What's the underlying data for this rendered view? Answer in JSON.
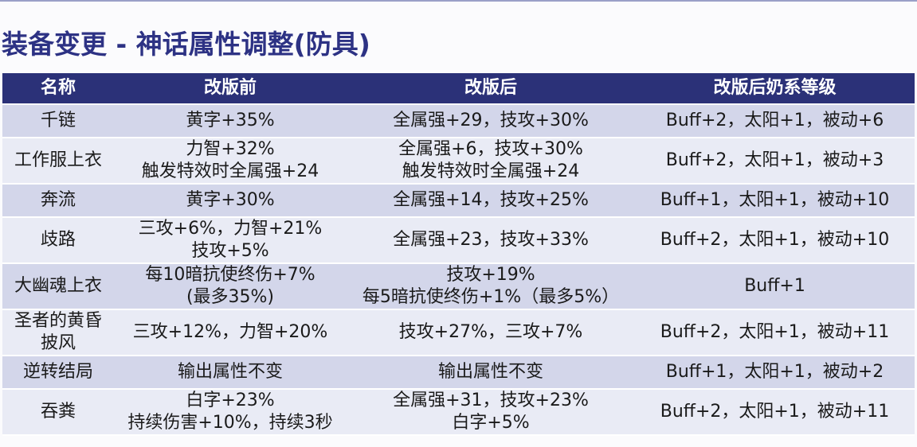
{
  "title": "装备变更 - 神话属性调整(防具)",
  "header": {
    "name": "名称",
    "before": "改版前",
    "after": "改版后",
    "level": "改版后奶系等级"
  },
  "rows": [
    {
      "name": [
        "千链"
      ],
      "before": [
        "黄字+35%"
      ],
      "after": [
        "全属强+29，技攻+30%"
      ],
      "level": [
        "Buff+2，太阳+1，被动+6"
      ]
    },
    {
      "name": [
        "工作服上衣"
      ],
      "before": [
        "力智+32%",
        "触发特效时全属强+24"
      ],
      "after": [
        "全属强+6，技攻+30%",
        "触发特效时全属强+24"
      ],
      "level": [
        "Buff+2，太阳+1，被动+3"
      ]
    },
    {
      "name": [
        "奔流"
      ],
      "before": [
        "黄字+30%"
      ],
      "after": [
        "全属强+14，技攻+25%"
      ],
      "level": [
        "Buff+1，太阳+1，被动+10"
      ]
    },
    {
      "name": [
        "歧路"
      ],
      "before": [
        "三攻+6%，力智+21%",
        "技攻+5%"
      ],
      "after": [
        "全属强+23，技攻+33%"
      ],
      "level": [
        "Buff+2，太阳+1，被动+10"
      ]
    },
    {
      "name": [
        "大幽魂上衣"
      ],
      "before": [
        "每10暗抗使终伤+7%",
        "(最多35%)"
      ],
      "after": [
        "技攻+19%",
        "每5暗抗使终伤+1%（最多5%）"
      ],
      "level": [
        "Buff+1"
      ]
    },
    {
      "name": [
        "圣者的黄昏",
        "披风"
      ],
      "before": [
        "三攻+12%，力智+20%"
      ],
      "after": [
        "技攻+27%，三攻+7%"
      ],
      "level": [
        "Buff+2，太阳+1，被动+11"
      ]
    },
    {
      "name": [
        "逆转结局"
      ],
      "before": [
        "输出属性不变"
      ],
      "after": [
        "输出属性不变"
      ],
      "level": [
        "Buff+1，太阳+1，被动+2"
      ]
    },
    {
      "name": [
        "吞粪"
      ],
      "before": [
        "白字+23%",
        "持续伤害+10%，持续3秒"
      ],
      "after": [
        "全属强+31，技攻+23%",
        "白字+5%"
      ],
      "level": [
        "Buff+2，太阳+1，被动+11"
      ]
    }
  ]
}
